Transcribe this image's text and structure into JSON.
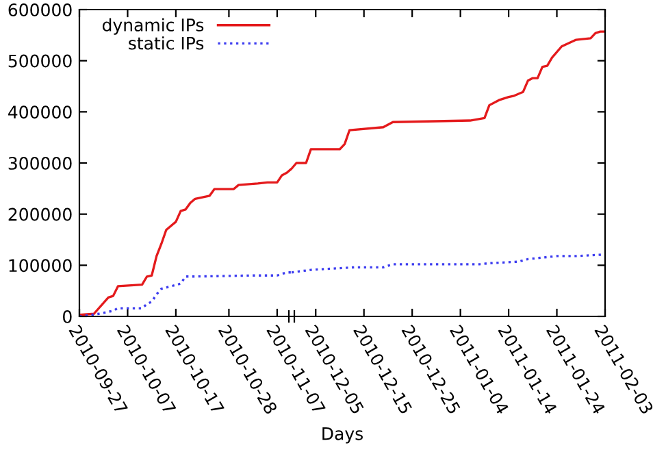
{
  "chart_data": [
    {
      "type": "line",
      "xlabel": "Days",
      "xlim": [
        "2010-09-27",
        "2010-11-10"
      ],
      "xticks": [
        "2010-09-27",
        "2010-10-07",
        "2010-10-17",
        "2010-10-28",
        "2010-11-07"
      ],
      "ylim": [
        0,
        600000
      ],
      "yticks": [
        0,
        100000,
        200000,
        300000,
        400000,
        500000,
        600000
      ],
      "grid": false,
      "legend": "top",
      "marker": "none",
      "series": [
        {
          "name": "dynamic IPs",
          "color": "#e41a1c",
          "line_style": "solid",
          "x": [
            "2010-09-27",
            "2010-09-30",
            "2010-10-03",
            "2010-10-04",
            "2010-10-05",
            "2010-10-10",
            "2010-10-11",
            "2010-10-12",
            "2010-10-13",
            "2010-10-14",
            "2010-10-15",
            "2010-10-16",
            "2010-10-17",
            "2010-10-18",
            "2010-10-19",
            "2010-10-20",
            "2010-10-21",
            "2010-10-24",
            "2010-10-25",
            "2010-10-29",
            "2010-10-30",
            "2010-11-03",
            "2010-11-05",
            "2010-11-07",
            "2010-11-08",
            "2010-11-09",
            "2010-11-10"
          ],
          "values": [
            3000,
            5000,
            37000,
            40000,
            59000,
            62000,
            78000,
            80000,
            118000,
            142000,
            169000,
            177000,
            185000,
            206000,
            209000,
            222000,
            230000,
            236000,
            249000,
            249000,
            257000,
            260000,
            262000,
            262000,
            276000,
            281000,
            289000
          ]
        },
        {
          "name": "static IPs",
          "color": "#3c3cf0",
          "line_style": "dotted",
          "x": [
            "2010-09-27",
            "2010-10-01",
            "2010-10-04",
            "2010-10-05",
            "2010-10-10",
            "2010-10-11",
            "2010-10-12",
            "2010-10-13",
            "2010-10-14",
            "2010-10-16",
            "2010-10-18",
            "2010-10-19",
            "2010-10-21",
            "2010-11-02",
            "2010-11-07",
            "2010-11-09",
            "2010-11-10"
          ],
          "values": [
            0,
            5000,
            11000,
            16000,
            16000,
            24000,
            29000,
            43000,
            54000,
            59000,
            64000,
            78000,
            78000,
            80000,
            80000,
            86000,
            86000
          ]
        }
      ]
    },
    {
      "type": "line",
      "xlim": [
        "2010-11-30",
        "2011-02-03"
      ],
      "xticks": [
        "2010-12-05",
        "2010-12-15",
        "2010-12-25",
        "2011-01-04",
        "2011-01-14",
        "2011-01-24",
        "2011-02-03"
      ],
      "ylim": [
        0,
        600000
      ],
      "tick_labels": "x",
      "grid": false,
      "marker": "none",
      "series": [
        {
          "color": "#e41a1c",
          "line_style": "solid",
          "x": [
            "2010-11-30",
            "2010-12-01",
            "2010-12-03",
            "2010-12-04",
            "2010-12-10",
            "2010-12-11",
            "2010-12-12",
            "2010-12-19",
            "2010-12-21",
            "2011-01-06",
            "2011-01-09",
            "2011-01-10",
            "2011-01-12",
            "2011-01-14",
            "2011-01-15",
            "2011-01-17",
            "2011-01-18",
            "2011-01-19",
            "2011-01-20",
            "2011-01-21",
            "2011-01-22",
            "2011-01-23",
            "2011-01-25",
            "2011-01-28",
            "2011-01-31",
            "2011-02-01",
            "2011-02-02",
            "2011-02-03"
          ],
          "values": [
            289000,
            300000,
            300000,
            327000,
            327000,
            337000,
            364000,
            370000,
            380000,
            383000,
            388000,
            413000,
            423000,
            429000,
            431000,
            439000,
            461000,
            466000,
            466000,
            488000,
            490000,
            506000,
            528000,
            541000,
            544000,
            554000,
            557000,
            557000
          ]
        },
        {
          "color": "#3c3cf0",
          "line_style": "dotted",
          "x": [
            "2010-11-30",
            "2010-12-04",
            "2010-12-13",
            "2010-12-19",
            "2010-12-21",
            "2011-01-08",
            "2011-01-10",
            "2011-01-16",
            "2011-01-18",
            "2011-01-21",
            "2011-01-24",
            "2011-01-28",
            "2011-02-03"
          ],
          "values": [
            86000,
            91000,
            96000,
            96000,
            102000,
            102000,
            104000,
            107000,
            112000,
            115000,
            118000,
            118000,
            121000
          ]
        }
      ]
    }
  ]
}
